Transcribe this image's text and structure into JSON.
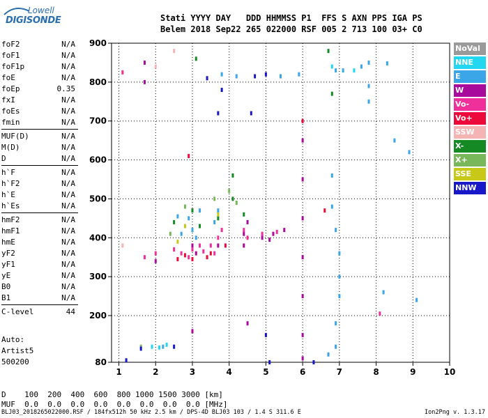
{
  "logo": {
    "line1": "Lowell",
    "line2": "DIGISONDE"
  },
  "header": {
    "labels": "Stati YYYY DAY   DDD HHMMSS P1  FFS S AXN PPS IGA PS",
    "values": "Belem 2018 Sep22 265 022000 RSF 005 2 713 100 03+ C0"
  },
  "params": {
    "group1": [
      {
        "name": "foF2",
        "value": "N/A"
      },
      {
        "name": "foF1",
        "value": "N/A"
      },
      {
        "name": "foF1p",
        "value": "N/A"
      },
      {
        "name": "foE",
        "value": "N/A"
      },
      {
        "name": "foEp",
        "value": "0.35"
      },
      {
        "name": "fxI",
        "value": "N/A"
      },
      {
        "name": "foEs",
        "value": "N/A"
      },
      {
        "name": "fmin",
        "value": "N/A"
      }
    ],
    "group2": [
      {
        "name": "MUF(D)",
        "value": "N/A"
      },
      {
        "name": "M(D)",
        "value": "N/A"
      },
      {
        "name": "D",
        "value": "N/A"
      }
    ],
    "group3": [
      {
        "name": "h`F",
        "value": "N/A"
      },
      {
        "name": "h`F2",
        "value": "N/A"
      },
      {
        "name": "h`E",
        "value": "N/A"
      },
      {
        "name": "h`Es",
        "value": "N/A"
      }
    ],
    "group4": [
      {
        "name": "hmF2",
        "value": "N/A"
      },
      {
        "name": "hmF1",
        "value": "N/A"
      },
      {
        "name": "hmE",
        "value": "N/A"
      },
      {
        "name": "yF2",
        "value": "N/A"
      },
      {
        "name": "yF1",
        "value": "N/A"
      },
      {
        "name": "yE",
        "value": "N/A"
      },
      {
        "name": "B0",
        "value": "N/A"
      },
      {
        "name": "B1",
        "value": "N/A"
      }
    ],
    "clevel": {
      "name": "C-level",
      "value": "44"
    }
  },
  "auto": {
    "line1": "Auto:",
    "line2": "Artist5",
    "line3": "500200"
  },
  "legend": [
    {
      "label": "NoVal",
      "color": "#9a9a9a"
    },
    {
      "label": "NNE",
      "color": "#22d7ef"
    },
    {
      "label": "E",
      "color": "#3aa6e8"
    },
    {
      "label": "W",
      "color": "#a80a9c"
    },
    {
      "label": "Vo-",
      "color": "#f0309a"
    },
    {
      "label": "Vo+",
      "color": "#ec0a3a"
    },
    {
      "label": "SSW",
      "color": "#f4b4b4"
    },
    {
      "label": "X-",
      "color": "#158a24"
    },
    {
      "label": "X+",
      "color": "#78b85a"
    },
    {
      "label": "SSE",
      "color": "#c8c818"
    },
    {
      "label": "NNW",
      "color": "#1818c8"
    }
  ],
  "freq_table": {
    "row1": "D    100  200  400  600  800 1000 1500 3000 [km]",
    "row2": "MUF  0.0  0.0  0.0  0.0  0.0  0.0  0.0  0.0 [MHz]"
  },
  "footer": "BLJ03_2018265022000.RSF / 184fx512h 50 kHz 2.5 km / DPS-4D BLJ03 103 / 1.4 S 311.6 E",
  "version": "Ion2Png v. 1.3.17",
  "chart_data": {
    "type": "scatter",
    "x_ticks": [
      "1",
      "2",
      "3",
      "4",
      "5",
      "6",
      "7",
      "8",
      "9",
      "10"
    ],
    "y_ticks": [
      "80",
      "200",
      "300",
      "400",
      "500",
      "600",
      "700",
      "800",
      "900"
    ],
    "xlim": [
      0.8,
      10
    ],
    "ylim": [
      80,
      900
    ],
    "grid": true,
    "legend_placement": "right",
    "series": [
      {
        "name": "E",
        "color": "#3aa6e8",
        "points": [
          [
            2.8,
            430
          ],
          [
            2.9,
            450
          ],
          [
            3.0,
            420
          ],
          [
            3.1,
            400
          ],
          [
            3.6,
            440
          ],
          [
            3.7,
            470
          ],
          [
            3.2,
            470
          ],
          [
            2.7,
            410
          ],
          [
            2.6,
            455
          ],
          [
            3.8,
            820
          ],
          [
            4.2,
            815
          ],
          [
            6.9,
            830
          ],
          [
            7.1,
            830
          ],
          [
            7.6,
            840
          ],
          [
            7.8,
            850
          ],
          [
            8.3,
            848
          ],
          [
            6.8,
            560
          ],
          [
            6.8,
            480
          ],
          [
            6.9,
            420
          ],
          [
            7.0,
            360
          ],
          [
            7.0,
            300
          ],
          [
            7.0,
            250
          ],
          [
            6.9,
            180
          ],
          [
            6.9,
            120
          ],
          [
            7.8,
            790
          ],
          [
            7.8,
            750
          ],
          [
            8.5,
            650
          ],
          [
            8.9,
            620
          ],
          [
            9.1,
            240
          ],
          [
            8.2,
            260
          ],
          [
            6.7,
            100
          ],
          [
            2.2,
            120
          ],
          [
            5.4,
            815
          ],
          [
            5.9,
            820
          ]
        ]
      },
      {
        "name": "W",
        "color": "#a80a9c",
        "points": [
          [
            1.7,
            850
          ],
          [
            1.7,
            800
          ],
          [
            2.0,
            340
          ],
          [
            3.1,
            360
          ],
          [
            3.0,
            380
          ],
          [
            3.7,
            380
          ],
          [
            4.4,
            410
          ],
          [
            4.4,
            380
          ],
          [
            4.5,
            440
          ],
          [
            4.9,
            400
          ],
          [
            5.1,
            395
          ],
          [
            5.2,
            410
          ],
          [
            5.5,
            420
          ],
          [
            6.0,
            650
          ],
          [
            6.0,
            550
          ],
          [
            6.0,
            450
          ],
          [
            6.0,
            350
          ],
          [
            6.0,
            250
          ],
          [
            6.0,
            150
          ],
          [
            6.0,
            90
          ],
          [
            3.0,
            160
          ],
          [
            4.5,
            180
          ]
        ]
      },
      {
        "name": "Vo-",
        "color": "#f0309a",
        "points": [
          [
            1.7,
            350
          ],
          [
            2.0,
            360
          ],
          [
            2.5,
            370
          ],
          [
            2.7,
            360
          ],
          [
            2.9,
            350
          ],
          [
            3.0,
            370
          ],
          [
            3.2,
            380
          ],
          [
            3.6,
            360
          ],
          [
            3.7,
            400
          ],
          [
            3.8,
            420
          ],
          [
            4.4,
            420
          ],
          [
            4.5,
            400
          ],
          [
            5.3,
            415
          ],
          [
            4.9,
            410
          ],
          [
            3.5,
            380
          ],
          [
            3.3,
            365
          ],
          [
            8.1,
            205
          ],
          [
            1.1,
            825
          ]
        ]
      },
      {
        "name": "Vo+",
        "color": "#ec0a3a",
        "points": [
          [
            2.6,
            345
          ],
          [
            2.8,
            355
          ],
          [
            3.0,
            345
          ],
          [
            3.4,
            350
          ],
          [
            3.5,
            360
          ],
          [
            3.9,
            380
          ],
          [
            6.6,
            470
          ],
          [
            6.0,
            700
          ],
          [
            2.9,
            610
          ]
        ]
      },
      {
        "name": "X-",
        "color": "#158a24",
        "points": [
          [
            2.5,
            440
          ],
          [
            3.0,
            470
          ],
          [
            3.2,
            430
          ],
          [
            3.7,
            450
          ],
          [
            4.1,
            560
          ],
          [
            4.1,
            500
          ],
          [
            4.4,
            460
          ],
          [
            6.7,
            880
          ],
          [
            6.8,
            770
          ],
          [
            3.1,
            860
          ]
        ]
      },
      {
        "name": "X+",
        "color": "#78b85a",
        "points": [
          [
            2.4,
            410
          ],
          [
            2.8,
            480
          ],
          [
            3.6,
            500
          ],
          [
            4.0,
            520
          ],
          [
            4.2,
            490
          ],
          [
            1.6,
            120
          ]
        ]
      },
      {
        "name": "SSE",
        "color": "#c8c818",
        "points": [
          [
            2.8,
            430
          ],
          [
            3.7,
            460
          ],
          [
            2.6,
            390
          ]
        ]
      },
      {
        "name": "NNE",
        "color": "#22d7ef",
        "points": [
          [
            1.9,
            120
          ],
          [
            2.1,
            118
          ],
          [
            2.3,
            125
          ],
          [
            6.8,
            840
          ],
          [
            7.4,
            830
          ]
        ]
      },
      {
        "name": "NNW",
        "color": "#1818c8",
        "points": [
          [
            1.6,
            115
          ],
          [
            2.5,
            120
          ],
          [
            3.7,
            720
          ],
          [
            4.6,
            720
          ],
          [
            5.0,
            150
          ],
          [
            3.4,
            810
          ],
          [
            3.8,
            780
          ],
          [
            5.0,
            820
          ],
          [
            4.7,
            815
          ],
          [
            5.1,
            80
          ],
          [
            6.3,
            80
          ],
          [
            1.2,
            85
          ]
        ]
      },
      {
        "name": "SSW",
        "color": "#f4b4b4",
        "points": [
          [
            1.1,
            380
          ],
          [
            2.0,
            840
          ],
          [
            2.5,
            880
          ]
        ]
      }
    ]
  }
}
